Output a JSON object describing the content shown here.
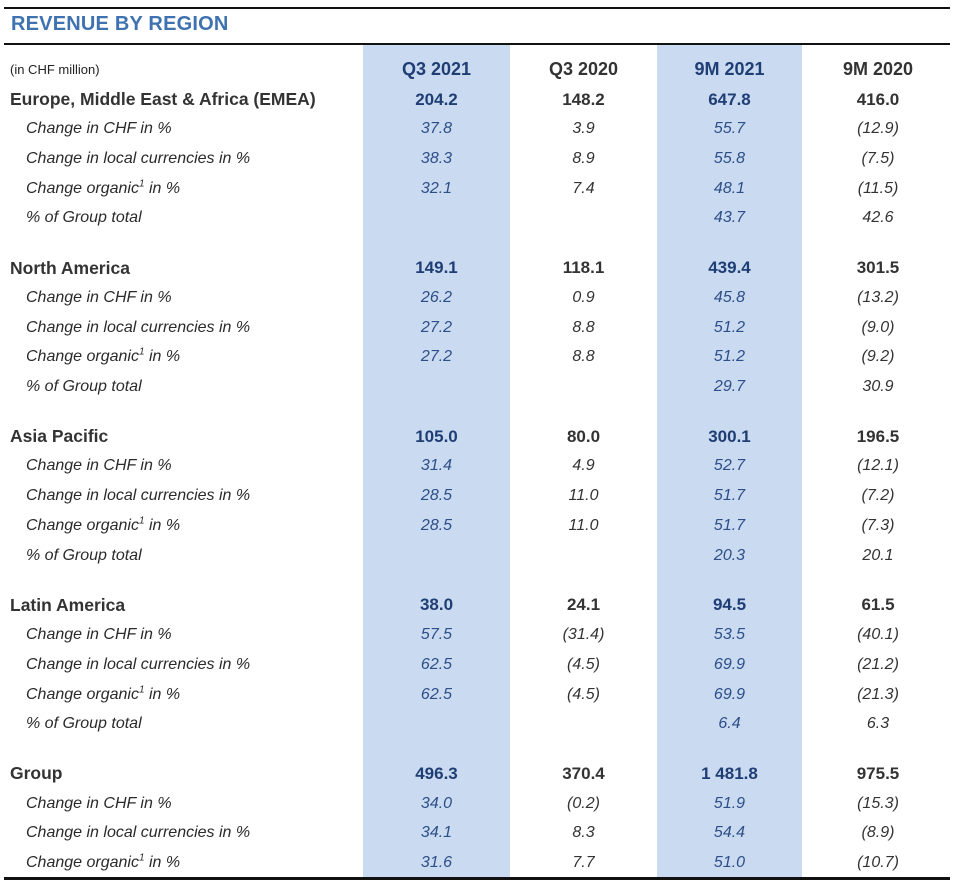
{
  "title": "REVENUE BY REGION",
  "unit_label": "(in CHF million)",
  "columns": [
    "Q3 2021",
    "Q3 2020",
    "9M 2021",
    "9M 2020"
  ],
  "row_labels": {
    "chf": "Change in CHF in %",
    "local": "Change in local currencies in %",
    "organic_pre": "Change organic",
    "organic_sup": "1",
    "organic_post": " in %",
    "share": "% of Group total"
  },
  "regions": [
    {
      "name": "Europe, Middle East & Africa (EMEA)",
      "revenue": [
        "204.2",
        "148.2",
        "647.8",
        "416.0"
      ],
      "chf": [
        "37.8",
        "3.9",
        "55.7",
        "(12.9)"
      ],
      "local": [
        "38.3",
        "8.9",
        "55.8",
        "(7.5)"
      ],
      "organic": [
        "32.1",
        "7.4",
        "48.1",
        "(11.5)"
      ],
      "share": [
        "",
        "",
        "43.7",
        "42.6"
      ]
    },
    {
      "name": "North America",
      "revenue": [
        "149.1",
        "118.1",
        "439.4",
        "301.5"
      ],
      "chf": [
        "26.2",
        "0.9",
        "45.8",
        "(13.2)"
      ],
      "local": [
        "27.2",
        "8.8",
        "51.2",
        "(9.0)"
      ],
      "organic": [
        "27.2",
        "8.8",
        "51.2",
        "(9.2)"
      ],
      "share": [
        "",
        "",
        "29.7",
        "30.9"
      ]
    },
    {
      "name": "Asia Pacific",
      "revenue": [
        "105.0",
        "80.0",
        "300.1",
        "196.5"
      ],
      "chf": [
        "31.4",
        "4.9",
        "52.7",
        "(12.1)"
      ],
      "local": [
        "28.5",
        "11.0",
        "51.7",
        "(7.2)"
      ],
      "organic": [
        "28.5",
        "11.0",
        "51.7",
        "(7.3)"
      ],
      "share": [
        "",
        "",
        "20.3",
        "20.1"
      ]
    },
    {
      "name": "Latin America",
      "revenue": [
        "38.0",
        "24.1",
        "94.5",
        "61.5"
      ],
      "chf": [
        "57.5",
        "(31.4)",
        "53.5",
        "(40.1)"
      ],
      "local": [
        "62.5",
        "(4.5)",
        "69.9",
        "(21.2)"
      ],
      "organic": [
        "62.5",
        "(4.5)",
        "69.9",
        "(21.3)"
      ],
      "share": [
        "",
        "",
        "6.4",
        "6.3"
      ]
    },
    {
      "name": "Group",
      "revenue": [
        "496.3",
        "370.4",
        "1 481.8",
        "975.5"
      ],
      "chf": [
        "34.0",
        "(0.2)",
        "51.9",
        "(15.3)"
      ],
      "local": [
        "34.1",
        "8.3",
        "54.4",
        "(8.9)"
      ],
      "organic": [
        "31.6",
        "7.7",
        "51.0",
        "(10.7)"
      ]
    }
  ]
}
